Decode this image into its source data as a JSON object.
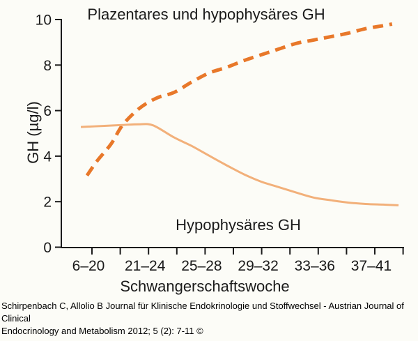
{
  "title": "Plazentares und hypophysäres GH",
  "caption": {
    "line1": "Schirpenbach C, Allolio B Journal für Klinische Endokrinologie und Stoffwechsel - Austrian Journal of Clinical",
    "line2": "Endocrinology and Metabolism 2012; 5 (2): 7-11 ©"
  },
  "colors": {
    "placental_line": "#e8782a",
    "pituitary_line": "#f2b07a",
    "axis": "#1a1a1a",
    "background": "#fcfcf7"
  },
  "chart_data": {
    "type": "line",
    "title": "Plazentares und hypophysäres GH",
    "xlabel": "Schwangerschaftswoche",
    "ylabel": "GH (µg/l)",
    "ylim": [
      0,
      10
    ],
    "y_ticks": [
      0,
      2,
      4,
      6,
      8,
      10
    ],
    "x_categories": [
      "6–20",
      "21–24",
      "25–28",
      "29–32",
      "33–36",
      "37–41"
    ],
    "x_minor_ticks_total": 12,
    "grid": "off",
    "legend_position": "none",
    "annotation": "Hypophysäres GH",
    "series": [
      {
        "name": "Plazentares GH",
        "style": "dashed",
        "color": "#e8782a",
        "width": 5,
        "points": [
          [
            0.075,
            3.15
          ],
          [
            0.105,
            3.8
          ],
          [
            0.146,
            4.55
          ],
          [
            0.179,
            5.37
          ],
          [
            0.228,
            6.1
          ],
          [
            0.278,
            6.55
          ],
          [
            0.329,
            6.8
          ],
          [
            0.38,
            7.25
          ],
          [
            0.431,
            7.65
          ],
          [
            0.482,
            7.9
          ],
          [
            0.533,
            8.2
          ],
          [
            0.583,
            8.45
          ],
          [
            0.634,
            8.7
          ],
          [
            0.685,
            8.95
          ],
          [
            0.736,
            9.1
          ],
          [
            0.787,
            9.25
          ],
          [
            0.837,
            9.4
          ],
          [
            0.888,
            9.6
          ],
          [
            0.939,
            9.73
          ],
          [
            0.965,
            9.8
          ]
        ]
      },
      {
        "name": "Hypophysäres GH",
        "style": "solid",
        "color": "#f2b07a",
        "width": 3,
        "points": [
          [
            0.057,
            5.28
          ],
          [
            0.126,
            5.33
          ],
          [
            0.179,
            5.37
          ],
          [
            0.228,
            5.4
          ],
          [
            0.268,
            5.35
          ],
          [
            0.329,
            4.82
          ],
          [
            0.38,
            4.45
          ],
          [
            0.431,
            4.02
          ],
          [
            0.482,
            3.6
          ],
          [
            0.533,
            3.2
          ],
          [
            0.583,
            2.88
          ],
          [
            0.634,
            2.64
          ],
          [
            0.685,
            2.4
          ],
          [
            0.736,
            2.18
          ],
          [
            0.787,
            2.06
          ],
          [
            0.837,
            1.96
          ],
          [
            0.888,
            1.9
          ],
          [
            0.939,
            1.87
          ],
          [
            0.984,
            1.84
          ]
        ]
      }
    ]
  }
}
